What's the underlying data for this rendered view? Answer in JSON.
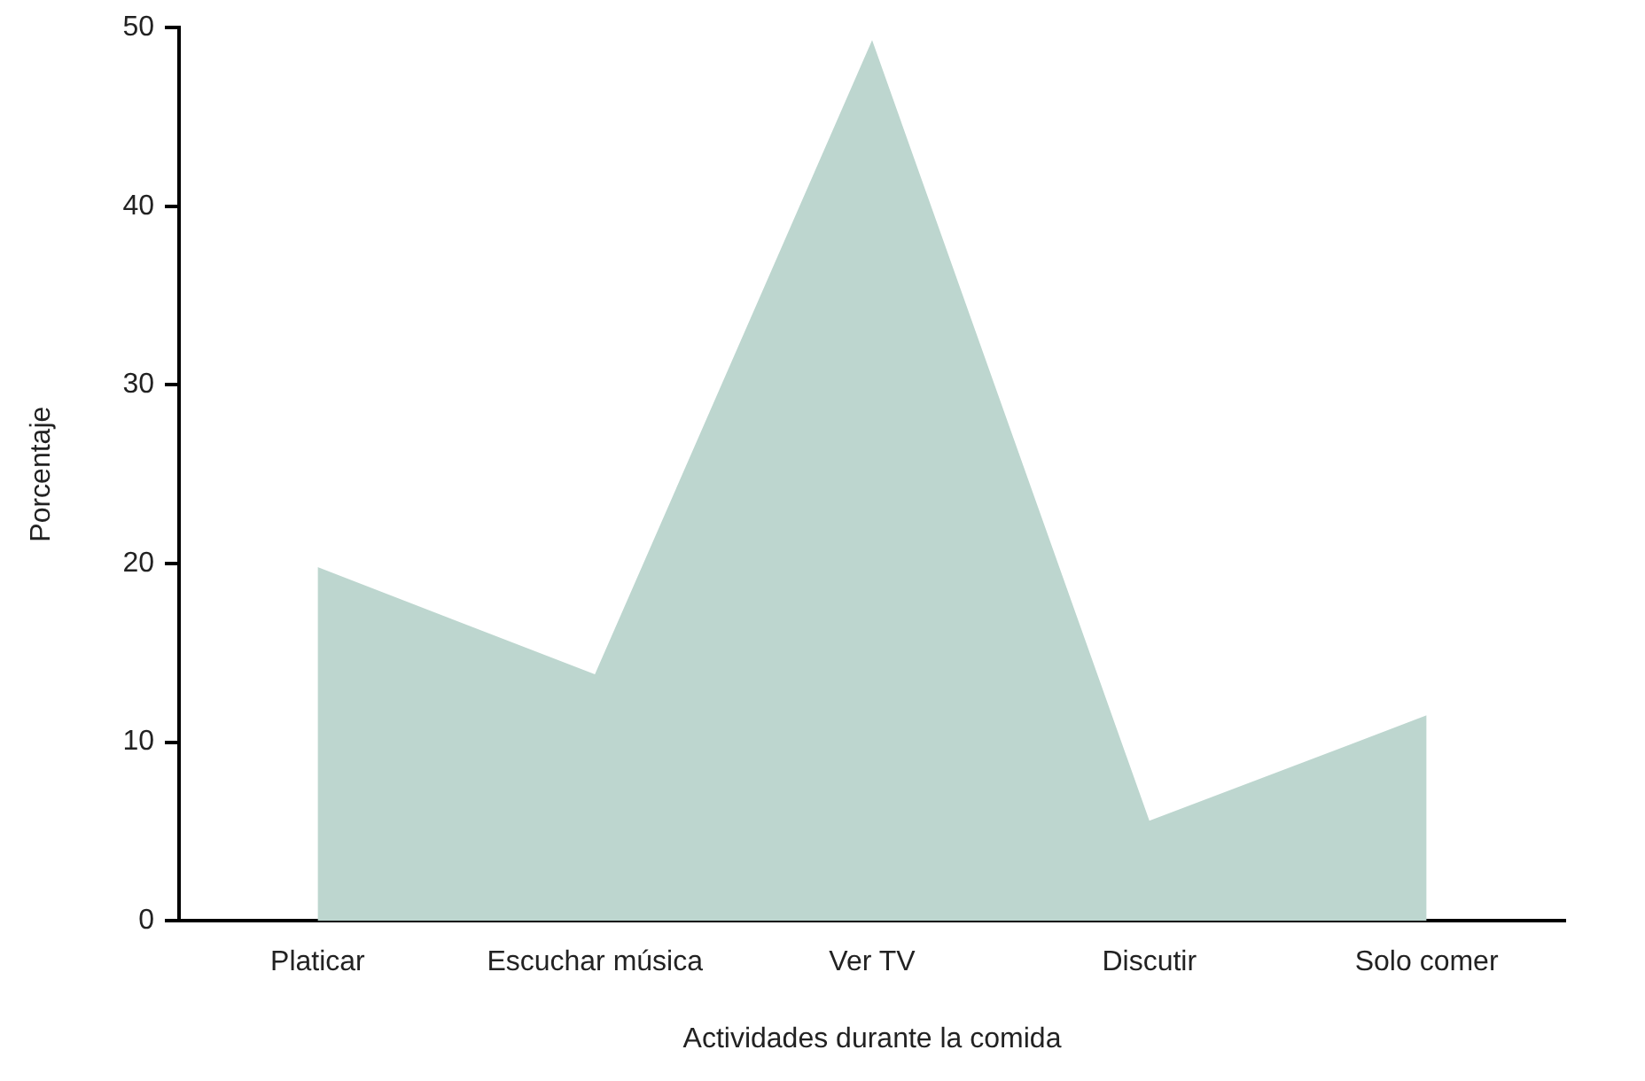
{
  "chart_data": {
    "type": "area",
    "xlabel": "Actividades durante la comida",
    "ylabel": "Porcentaje",
    "categories": [
      "Platicar",
      "Escuchar música",
      "Ver TV",
      "Discutir",
      "Solo comer"
    ],
    "series": [
      {
        "color": "#bdd6cf",
        "values": [
          19.8,
          13.8,
          49.3,
          5.6,
          11.5
        ]
      }
    ],
    "ylim": [
      0,
      50
    ],
    "yticks": [
      0,
      10,
      20,
      30,
      40,
      50
    ],
    "grid": false,
    "legend": false
  }
}
